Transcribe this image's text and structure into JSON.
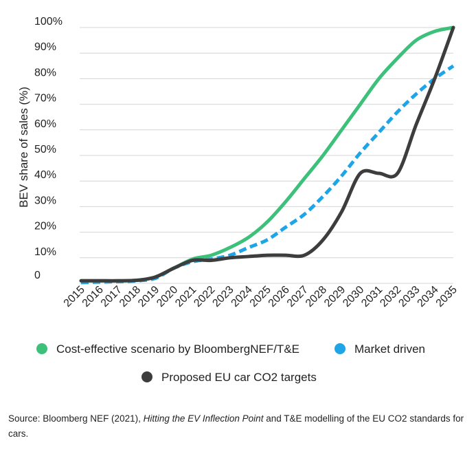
{
  "chart_data": {
    "type": "line",
    "title": "",
    "xlabel": "",
    "ylabel": "BEV share of sales (%)",
    "x": [
      2015,
      2016,
      2017,
      2018,
      2019,
      2020,
      2021,
      2022,
      2023,
      2024,
      2025,
      2026,
      2027,
      2028,
      2029,
      2030,
      2031,
      2032,
      2033,
      2034,
      2035
    ],
    "x_tick_labels": [
      "2015",
      "2016",
      "2017",
      "2018",
      "2019",
      "2020",
      "2021",
      "2022",
      "2023",
      "2024",
      "2025",
      "2026",
      "2027",
      "2028",
      "2029",
      "2030",
      "2031",
      "2032",
      "2033",
      "2034",
      "2035"
    ],
    "ylim": [
      0,
      100
    ],
    "y_ticks": [
      0,
      10,
      20,
      30,
      40,
      50,
      60,
      70,
      80,
      90,
      100
    ],
    "y_tick_labels": [
      "0",
      "10%",
      "20%",
      "30%",
      "40%",
      "50%",
      "60%",
      "70%",
      "80%",
      "90%",
      "100%"
    ],
    "grid": "horizontal",
    "legend_position": "bottom",
    "series": [
      {
        "name": "Cost-effective scenario by BloombergNEF/T&E",
        "color": "#3cc07a",
        "style": "solid",
        "values": [
          1,
          1,
          1,
          1.2,
          2.5,
          6,
          9.5,
          11,
          14,
          18,
          24,
          32,
          41,
          50,
          60,
          70,
          80,
          88,
          95,
          98.5,
          100
        ]
      },
      {
        "name": "Market driven",
        "color": "#1ea5e8",
        "style": "dashed",
        "values": [
          0.3,
          0.5,
          0.7,
          1,
          2,
          6,
          8.5,
          9.5,
          11,
          14,
          17,
          22,
          27,
          34,
          42,
          51,
          59,
          67,
          74,
          80,
          85
        ]
      },
      {
        "name": "Proposed EU car CO2 targets",
        "color": "#3d3d3d",
        "style": "solid",
        "values": [
          1,
          1,
          1,
          1.2,
          2.5,
          6,
          9,
          9,
          10,
          10.5,
          11,
          11,
          11,
          17,
          28,
          43,
          43,
          43,
          62,
          80,
          100
        ]
      }
    ]
  },
  "source": {
    "prefix": "Source: Bloomberg NEF (2021), ",
    "italic": "Hitting the EV Inflection Point",
    "suffix": " and T&E modelling of the EU CO2 standards for cars."
  }
}
